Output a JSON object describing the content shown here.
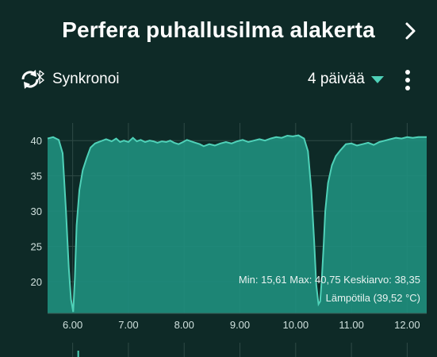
{
  "header": {
    "title": "Perfera puhallusilma alakerta",
    "next_icon": "chevron-right-icon"
  },
  "toolbar": {
    "sync_icon": "sync-bluetooth-icon",
    "sync_label": "Synkronoi",
    "range_label": "4 päivää",
    "range_icon": "triangle-down-icon",
    "more_icon": "more-vertical-icon"
  },
  "colors": {
    "background": "#0e2a27",
    "accent": "#4fd1b8",
    "fill": "#1f8f7e"
  },
  "stats": {
    "summary": "Min: 15,61 Max: 40,75 Keskiarvo: 38,35",
    "series_label": "Lämpötila (39,52 °C)"
  },
  "chart_data": {
    "type": "area",
    "xlabel": "",
    "ylabel": "",
    "xlim": [
      5.55,
      12.35
    ],
    "ylim": [
      15.5,
      42.5
    ],
    "x_ticks": [
      "6.00",
      "7.00",
      "8.00",
      "9.00",
      "10.00",
      "11.00",
      "12.00"
    ],
    "y_ticks": [
      "20",
      "25",
      "30",
      "35",
      "40"
    ],
    "grid": true,
    "series": [
      {
        "name": "Lämpötila",
        "x": [
          5.55,
          5.65,
          5.75,
          5.82,
          5.88,
          5.93,
          5.97,
          6.01,
          6.04,
          6.07,
          6.12,
          6.18,
          6.25,
          6.32,
          6.4,
          6.5,
          6.6,
          6.7,
          6.78,
          6.85,
          6.92,
          7.0,
          7.08,
          7.15,
          7.22,
          7.3,
          7.38,
          7.45,
          7.52,
          7.6,
          7.68,
          7.75,
          7.82,
          7.9,
          7.98,
          8.05,
          8.12,
          8.2,
          8.28,
          8.35,
          8.45,
          8.55,
          8.65,
          8.75,
          8.85,
          8.95,
          9.05,
          9.15,
          9.25,
          9.35,
          9.45,
          9.55,
          9.65,
          9.75,
          9.85,
          9.95,
          10.05,
          10.15,
          10.22,
          10.28,
          10.33,
          10.37,
          10.41,
          10.44,
          10.47,
          10.5,
          10.53,
          10.58,
          10.65,
          10.72,
          10.8,
          10.9,
          11.0,
          11.1,
          11.2,
          11.3,
          11.4,
          11.5,
          11.6,
          11.7,
          11.8,
          11.9,
          12.0,
          12.1,
          12.2,
          12.35
        ],
        "y": [
          40.3,
          40.5,
          40.1,
          38.2,
          30.0,
          22.0,
          17.5,
          15.7,
          20.5,
          28.0,
          33.0,
          35.8,
          37.5,
          39.0,
          39.6,
          39.9,
          40.2,
          39.9,
          40.3,
          39.8,
          40.0,
          39.8,
          40.4,
          39.9,
          40.1,
          39.8,
          40.0,
          39.9,
          39.7,
          39.9,
          39.8,
          40.0,
          39.7,
          39.5,
          39.8,
          40.1,
          39.9,
          39.7,
          39.5,
          39.2,
          39.5,
          39.3,
          39.6,
          39.8,
          39.6,
          39.9,
          40.1,
          39.8,
          40.0,
          40.2,
          40.0,
          40.3,
          40.5,
          40.4,
          40.7,
          40.6,
          40.75,
          40.3,
          38.5,
          33.0,
          26.0,
          19.5,
          16.8,
          17.2,
          20.5,
          25.0,
          30.0,
          34.0,
          36.5,
          37.8,
          38.6,
          39.5,
          39.6,
          39.3,
          39.5,
          39.7,
          39.4,
          39.8,
          40.0,
          40.2,
          40.4,
          40.3,
          40.5,
          40.4,
          40.5,
          40.5
        ]
      }
    ],
    "min": 15.61,
    "max": 40.75,
    "avg": 38.35
  }
}
